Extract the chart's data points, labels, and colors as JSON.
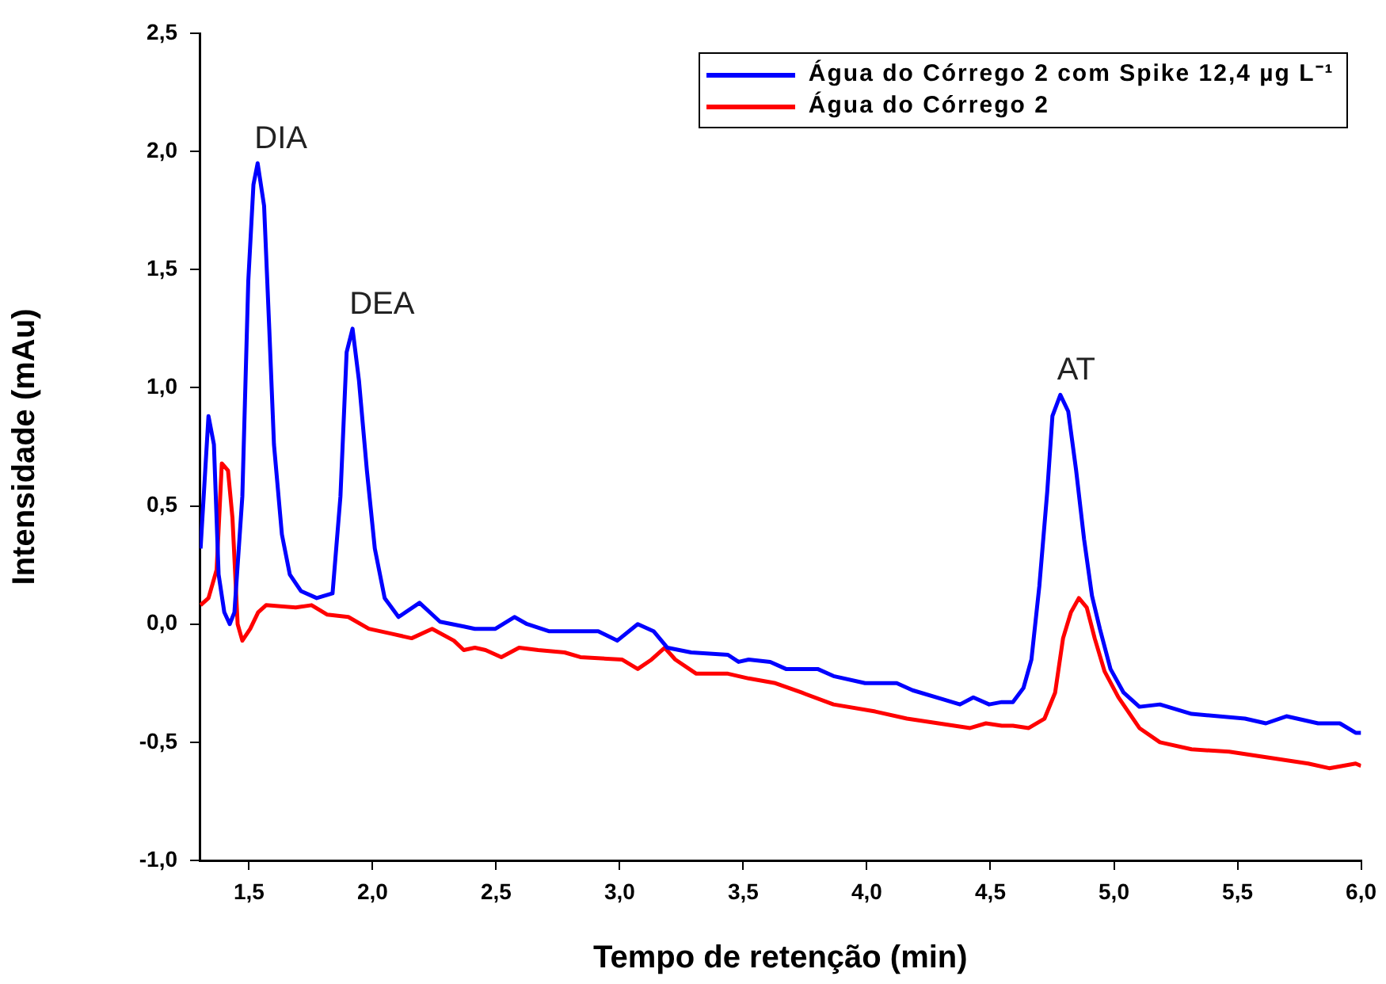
{
  "chart_data": {
    "type": "line",
    "xlabel": "Tempo de retenção (min)",
    "ylabel": "Intensidade (mAu)",
    "xlim": [
      1.3,
      6.0
    ],
    "ylim": [
      -1.0,
      2.5
    ],
    "xticks": [
      {
        "value": 1.5,
        "label": "1,5"
      },
      {
        "value": 2.0,
        "label": "2,0"
      },
      {
        "value": 2.5,
        "label": "2,5"
      },
      {
        "value": 3.0,
        "label": "3,0"
      },
      {
        "value": 3.5,
        "label": "3,5"
      },
      {
        "value": 4.0,
        "label": "4,0"
      },
      {
        "value": 4.5,
        "label": "4,5"
      },
      {
        "value": 5.0,
        "label": "5,0"
      },
      {
        "value": 5.5,
        "label": "5,5"
      },
      {
        "value": 6.0,
        "label": "6,0"
      }
    ],
    "yticks": [
      {
        "value": -1.0,
        "label": "-1,0"
      },
      {
        "value": -0.5,
        "label": "-0,5"
      },
      {
        "value": 0.0,
        "label": "0,0"
      },
      {
        "value": 0.5,
        "label": "0,5"
      },
      {
        "value": 1.0,
        "label": "1,0"
      },
      {
        "value": 1.5,
        "label": "1,5"
      },
      {
        "value": 2.0,
        "label": "2,0"
      },
      {
        "value": 2.5,
        "label": "2,5"
      }
    ],
    "grid": false,
    "legend": "top right",
    "marker": "none",
    "line_style": "solid",
    "annotations": [
      {
        "text": "DIA",
        "x": 1.535,
        "y": 1.95
      },
      {
        "text": "DEA",
        "x": 1.919,
        "y": 1.25
      },
      {
        "text": "AT",
        "x": 4.783,
        "y": 0.97
      }
    ],
    "series": [
      {
        "name": "Água do Córrego 2 com Spike 12,4 µg L⁻¹",
        "color": "#0000ff",
        "x": [
          1.304,
          1.336,
          1.358,
          1.377,
          1.4,
          1.422,
          1.441,
          1.473,
          1.497,
          1.518,
          1.535,
          1.561,
          1.582,
          1.601,
          1.633,
          1.665,
          1.71,
          1.774,
          1.838,
          1.87,
          1.895,
          1.919,
          1.945,
          1.977,
          2.009,
          2.049,
          2.105,
          2.19,
          2.273,
          2.369,
          2.414,
          2.497,
          2.574,
          2.625,
          2.713,
          2.913,
          2.99,
          3.073,
          3.137,
          3.193,
          3.289,
          3.438,
          3.481,
          3.522,
          3.609,
          3.673,
          3.801,
          3.865,
          3.993,
          4.121,
          4.185,
          4.313,
          4.377,
          4.431,
          4.495,
          4.546,
          4.591,
          4.634,
          4.666,
          4.698,
          4.73,
          4.751,
          4.783,
          4.815,
          4.847,
          4.879,
          4.911,
          4.943,
          4.986,
          5.039,
          5.103,
          5.186,
          5.314,
          5.53,
          5.615,
          5.698,
          5.826,
          5.914,
          5.978,
          6.0
        ],
        "values": [
          0.32,
          0.88,
          0.76,
          0.21,
          0.05,
          0.0,
          0.05,
          0.54,
          1.45,
          1.86,
          1.95,
          1.77,
          1.25,
          0.76,
          0.38,
          0.21,
          0.14,
          0.11,
          0.13,
          0.54,
          1.15,
          1.25,
          1.03,
          0.65,
          0.32,
          0.11,
          0.03,
          0.09,
          0.01,
          -0.01,
          -0.02,
          -0.02,
          0.03,
          0.0,
          -0.03,
          -0.03,
          -0.07,
          0.0,
          -0.03,
          -0.1,
          -0.12,
          -0.13,
          -0.16,
          -0.15,
          -0.16,
          -0.19,
          -0.19,
          -0.22,
          -0.25,
          -0.25,
          -0.28,
          -0.32,
          -0.34,
          -0.31,
          -0.34,
          -0.33,
          -0.33,
          -0.27,
          -0.15,
          0.16,
          0.56,
          0.88,
          0.97,
          0.9,
          0.65,
          0.36,
          0.12,
          -0.02,
          -0.19,
          -0.29,
          -0.35,
          -0.34,
          -0.38,
          -0.4,
          -0.42,
          -0.39,
          -0.42,
          -0.42,
          -0.46,
          -0.46
        ]
      },
      {
        "name": "Água do Córrego 2",
        "color": "#ff0000",
        "x": [
          1.304,
          1.336,
          1.369,
          1.39,
          1.415,
          1.433,
          1.454,
          1.473,
          1.505,
          1.537,
          1.569,
          1.689,
          1.753,
          1.817,
          1.902,
          1.985,
          2.073,
          2.158,
          2.241,
          2.329,
          2.369,
          2.414,
          2.457,
          2.521,
          2.593,
          2.67,
          2.777,
          2.841,
          3.009,
          3.073,
          3.129,
          3.182,
          3.225,
          3.31,
          3.438,
          3.522,
          3.63,
          3.737,
          3.865,
          4.034,
          4.162,
          4.29,
          4.418,
          4.482,
          4.546,
          4.591,
          4.655,
          4.719,
          4.762,
          4.794,
          4.826,
          4.858,
          4.89,
          4.922,
          4.962,
          5.018,
          5.103,
          5.186,
          5.314,
          5.466,
          5.53,
          5.658,
          5.786,
          5.871,
          5.978,
          6.0
        ],
        "values": [
          0.08,
          0.11,
          0.23,
          0.68,
          0.65,
          0.45,
          0.0,
          -0.07,
          -0.02,
          0.05,
          0.08,
          0.07,
          0.08,
          0.04,
          0.03,
          -0.02,
          -0.04,
          -0.06,
          -0.02,
          -0.07,
          -0.11,
          -0.1,
          -0.11,
          -0.14,
          -0.1,
          -0.11,
          -0.12,
          -0.14,
          -0.15,
          -0.19,
          -0.15,
          -0.1,
          -0.15,
          -0.21,
          -0.21,
          -0.23,
          -0.25,
          -0.29,
          -0.34,
          -0.37,
          -0.4,
          -0.42,
          -0.44,
          -0.42,
          -0.43,
          -0.43,
          -0.44,
          -0.4,
          -0.29,
          -0.06,
          0.05,
          0.11,
          0.07,
          -0.06,
          -0.2,
          -0.31,
          -0.44,
          -0.5,
          -0.53,
          -0.54,
          -0.55,
          -0.57,
          -0.59,
          -0.61,
          -0.59,
          -0.6
        ]
      }
    ]
  }
}
